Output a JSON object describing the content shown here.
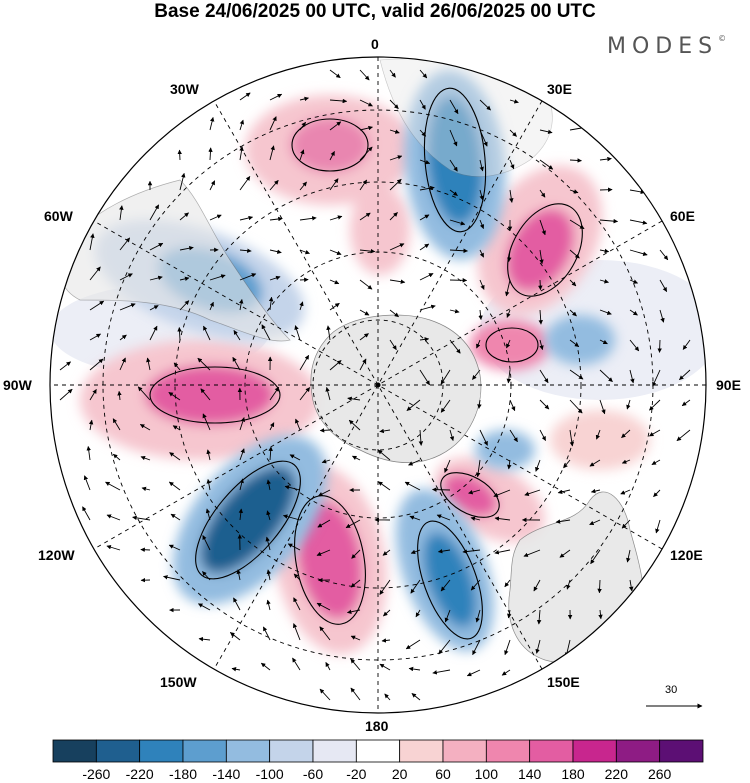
{
  "title": "Base 24/06/2025 00 UTC, valid 26/06/2025 00 UTC",
  "brand": "MODES",
  "brand_mark": "©",
  "lon_labels": [
    "0",
    "30E",
    "60E",
    "90E",
    "120E",
    "150E",
    "180",
    "150W",
    "120W",
    "90W",
    "60W",
    "30W"
  ],
  "vector_reference": "30",
  "colorbar": {
    "ticks": [
      "-260",
      "-220",
      "-180",
      "-140",
      "-100",
      "-60",
      "-20",
      "20",
      "60",
      "100",
      "140",
      "180",
      "220",
      "260"
    ],
    "colors": [
      "#17405e",
      "#1f5f8f",
      "#2f82bb",
      "#5d9ecf",
      "#93bce0",
      "#c4d4ea",
      "#e6e8f3",
      "#ffffff",
      "#f8d3d3",
      "#f4b0c1",
      "#ef86ae",
      "#e35da2",
      "#c8268e",
      "#8e1c84",
      "#5c0f74"
    ]
  },
  "colors": {
    "ocean": "#ffffff",
    "land": "#e6e6e6",
    "grid": "#000000"
  }
}
